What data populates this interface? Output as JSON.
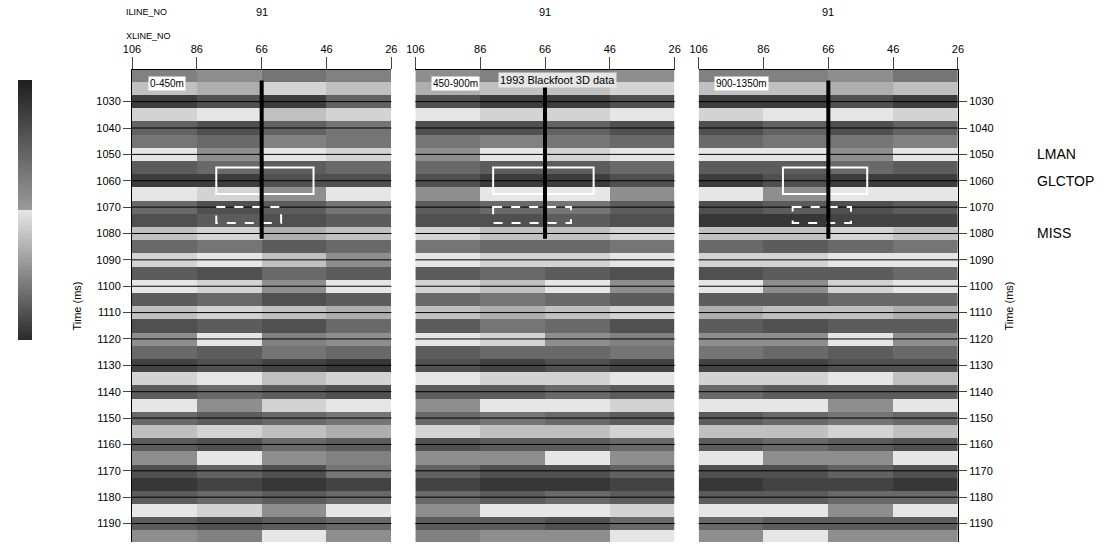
{
  "chart_data": {
    "type": "heatmap",
    "title": "1993 Blackfoot 3D data",
    "top_labels": [
      "ILINE_NO",
      "XLINE_NO"
    ],
    "y_label": "Time (ms)",
    "xlim": [
      106,
      26
    ],
    "xticks": [
      106,
      86,
      66,
      46,
      26
    ],
    "ylim": [
      1197,
      1018
    ],
    "yticks": [
      1030,
      1040,
      1050,
      1060,
      1070,
      1080,
      1090,
      1100,
      1110,
      1120,
      1130,
      1140,
      1150,
      1160,
      1170,
      1180,
      1190
    ],
    "grid": true,
    "colorbar": {
      "range": [
        -1,
        1
      ]
    },
    "horizons": [
      {
        "label": "LMAN",
        "value": 1050
      },
      {
        "label": "GLCTOP",
        "value": 1060
      },
      {
        "label": "MISS",
        "value": 1080
      }
    ],
    "t": [
      1020,
      1025,
      1030,
      1035,
      1040,
      1045,
      1050,
      1055,
      1060,
      1065,
      1070,
      1075,
      1080,
      1085,
      1090,
      1095,
      1100,
      1105,
      1110,
      1115,
      1120,
      1125,
      1130,
      1135,
      1140,
      1145,
      1150,
      1155,
      1160,
      1165,
      1170,
      1175,
      1180,
      1185,
      1190,
      1195
    ],
    "x": [
      96,
      76,
      56,
      36
    ],
    "panels": [
      {
        "label": "0-450m",
        "iline": 91,
        "well": {
          "xline": 66,
          "t": [
            1022,
            1082
          ]
        },
        "boxes": [
          {
            "x": [
              80,
              50
            ],
            "t": [
              1055,
              1065
            ],
            "line_style": "solid"
          },
          {
            "x": [
              80,
              60
            ],
            "t": [
              1070,
              1076
            ],
            "line_style": "dashed"
          }
        ],
        "z": [
          [
            0.2,
            0.1,
            0.3,
            0.2
          ],
          [
            -0.2,
            -0.3,
            -0.1,
            -0.2
          ],
          [
            -0.9,
            -0.8,
            -0.9,
            -0.7
          ],
          [
            -0.1,
            0.0,
            -0.2,
            -0.1
          ],
          [
            -0.7,
            -0.8,
            -0.7,
            -0.6
          ],
          [
            0.3,
            0.4,
            0.2,
            0.3
          ],
          [
            0.0,
            0.1,
            0.0,
            -0.1
          ],
          [
            0.5,
            0.4,
            0.5,
            0.4
          ],
          [
            -0.9,
            -0.9,
            -0.8,
            -0.8
          ],
          [
            0.0,
            -0.1,
            0.1,
            0.0
          ],
          [
            0.4,
            0.6,
            0.5,
            0.3
          ],
          [
            0.6,
            0.5,
            0.6,
            0.5
          ],
          [
            -0.2,
            -0.1,
            -0.3,
            -0.2
          ],
          [
            0.4,
            0.3,
            0.5,
            0.4
          ],
          [
            -0.1,
            0.0,
            -0.2,
            0.1
          ],
          [
            0.5,
            0.6,
            0.4,
            0.5
          ],
          [
            0.0,
            -0.1,
            0.1,
            0.0
          ],
          [
            0.5,
            0.4,
            0.6,
            0.5
          ],
          [
            -0.2,
            -0.1,
            -0.2,
            -0.3
          ],
          [
            0.6,
            0.5,
            0.6,
            0.4
          ],
          [
            0.1,
            0.0,
            0.2,
            0.1
          ],
          [
            0.4,
            0.5,
            0.3,
            0.4
          ],
          [
            0.7,
            0.6,
            0.7,
            0.8
          ],
          [
            -0.1,
            0.0,
            -0.2,
            -0.1
          ],
          [
            0.5,
            0.4,
            0.5,
            0.6
          ],
          [
            0.0,
            0.1,
            -0.1,
            0.0
          ],
          [
            0.4,
            0.5,
            0.4,
            0.3
          ],
          [
            -0.2,
            -0.1,
            -0.2,
            -0.3
          ],
          [
            0.5,
            0.6,
            0.4,
            0.5
          ],
          [
            0.1,
            0.0,
            0.1,
            0.2
          ],
          [
            -0.8,
            -0.7,
            -0.8,
            -0.6
          ],
          [
            0.8,
            0.7,
            0.8,
            0.7
          ],
          [
            0.5,
            0.4,
            0.5,
            0.4
          ],
          [
            0.0,
            -0.1,
            0.1,
            0.0
          ],
          [
            0.5,
            0.6,
            0.5,
            0.4
          ],
          [
            0.1,
            0.2,
            0.0,
            0.1
          ]
        ]
      },
      {
        "label": "450-900m",
        "iline": 91,
        "well": {
          "xline": 66,
          "t": [
            1022,
            1082
          ]
        },
        "boxes": [
          {
            "x": [
              82,
              51
            ],
            "t": [
              1055,
              1065
            ],
            "line_style": "solid"
          },
          {
            "x": [
              82,
              58
            ],
            "t": [
              1070,
              1076
            ],
            "line_style": "dashed"
          }
        ],
        "z": [
          [
            0.1,
            0.2,
            0.2,
            0.1
          ],
          [
            -0.3,
            -0.2,
            -0.2,
            -0.1
          ],
          [
            -0.8,
            -0.9,
            -0.9,
            -0.8
          ],
          [
            0.0,
            -0.1,
            -0.1,
            0.0
          ],
          [
            -0.8,
            -0.8,
            -0.7,
            -0.8
          ],
          [
            0.3,
            0.2,
            0.3,
            0.4
          ],
          [
            0.1,
            0.0,
            -0.1,
            0.0
          ],
          [
            0.4,
            0.5,
            0.5,
            0.4
          ],
          [
            -0.8,
            -0.9,
            -0.9,
            -0.8
          ],
          [
            0.1,
            0.0,
            0.0,
            0.1
          ],
          [
            0.5,
            0.4,
            0.3,
            0.5
          ],
          [
            0.6,
            0.6,
            0.5,
            0.6
          ],
          [
            -0.1,
            -0.2,
            -0.2,
            -0.1
          ],
          [
            0.3,
            0.4,
            0.4,
            0.3
          ],
          [
            0.0,
            -0.1,
            -0.1,
            0.0
          ],
          [
            0.5,
            0.4,
            0.5,
            0.6
          ],
          [
            -0.1,
            -0.2,
            0.0,
            0.1
          ],
          [
            0.4,
            0.3,
            0.4,
            0.5
          ],
          [
            -0.2,
            -0.3,
            -0.2,
            -0.1
          ],
          [
            0.5,
            0.3,
            0.4,
            0.6
          ],
          [
            0.0,
            -0.1,
            0.1,
            0.2
          ],
          [
            0.5,
            0.4,
            0.4,
            0.3
          ],
          [
            0.6,
            0.7,
            0.6,
            0.7
          ],
          [
            0.0,
            -0.1,
            -0.1,
            0.0
          ],
          [
            0.5,
            0.5,
            0.4,
            0.5
          ],
          [
            0.1,
            0.0,
            0.0,
            -0.1
          ],
          [
            0.4,
            0.3,
            0.4,
            0.5
          ],
          [
            -0.1,
            -0.2,
            -0.2,
            -0.1
          ],
          [
            0.6,
            0.5,
            0.5,
            0.4
          ],
          [
            0.1,
            0.1,
            0.0,
            0.1
          ],
          [
            -0.7,
            -0.8,
            -0.8,
            -0.7
          ],
          [
            0.7,
            0.8,
            0.8,
            0.7
          ],
          [
            0.4,
            0.5,
            0.4,
            0.5
          ],
          [
            0.1,
            0.0,
            0.0,
            -0.1
          ],
          [
            0.5,
            0.5,
            0.6,
            0.4
          ],
          [
            0.2,
            0.1,
            0.1,
            0.0
          ]
        ]
      },
      {
        "label": "900-1350m",
        "iline": 91,
        "well": {
          "xline": 66,
          "t": [
            1022,
            1082
          ]
        },
        "boxes": [
          {
            "x": [
              80,
              54
            ],
            "t": [
              1055,
              1065
            ],
            "line_style": "solid"
          },
          {
            "x": [
              77,
              59
            ],
            "t": [
              1070,
              1076
            ],
            "line_style": "dashed"
          }
        ],
        "z": [
          [
            0.2,
            0.2,
            0.1,
            0.3
          ],
          [
            -0.2,
            -0.2,
            -0.3,
            -0.2
          ],
          [
            -0.9,
            -0.9,
            -0.8,
            -0.9
          ],
          [
            -0.1,
            0.0,
            0.0,
            -0.1
          ],
          [
            -0.8,
            -0.7,
            -0.8,
            -0.7
          ],
          [
            0.4,
            0.3,
            0.3,
            0.2
          ],
          [
            0.0,
            0.0,
            0.1,
            0.0
          ],
          [
            0.5,
            0.5,
            0.4,
            0.5
          ],
          [
            -0.9,
            -0.8,
            -0.9,
            -0.9
          ],
          [
            0.0,
            0.1,
            0.0,
            0.0
          ],
          [
            0.6,
            0.5,
            0.6,
            0.5
          ],
          [
            0.8,
            0.8,
            0.7,
            0.7
          ],
          [
            -0.2,
            -0.2,
            -0.1,
            -0.2
          ],
          [
            0.4,
            0.5,
            0.4,
            0.3
          ],
          [
            -0.1,
            -0.1,
            0.0,
            0.0
          ],
          [
            0.6,
            0.5,
            0.5,
            0.4
          ],
          [
            0.0,
            0.1,
            -0.1,
            0.0
          ],
          [
            0.5,
            0.5,
            0.4,
            0.4
          ],
          [
            -0.3,
            -0.2,
            -0.2,
            -0.3
          ],
          [
            0.5,
            0.6,
            0.5,
            0.5
          ],
          [
            0.1,
            0.1,
            0.0,
            0.1
          ],
          [
            0.3,
            0.4,
            0.5,
            0.4
          ],
          [
            0.7,
            0.7,
            0.6,
            0.6
          ],
          [
            -0.1,
            -0.1,
            0.0,
            -0.2
          ],
          [
            0.4,
            0.5,
            0.5,
            0.5
          ],
          [
            0.0,
            0.0,
            0.1,
            0.0
          ],
          [
            0.5,
            0.4,
            0.3,
            0.4
          ],
          [
            -0.2,
            -0.2,
            -0.1,
            -0.2
          ],
          [
            0.5,
            0.4,
            0.5,
            0.6
          ],
          [
            0.0,
            0.1,
            0.1,
            0.0
          ],
          [
            -0.8,
            -0.8,
            -0.7,
            -0.8
          ],
          [
            0.8,
            0.7,
            0.7,
            0.8
          ],
          [
            0.5,
            0.5,
            0.4,
            0.4
          ],
          [
            0.0,
            0.0,
            0.1,
            0.0
          ],
          [
            0.4,
            0.5,
            0.5,
            0.5
          ],
          [
            0.1,
            0.0,
            0.1,
            0.1
          ]
        ]
      }
    ]
  }
}
